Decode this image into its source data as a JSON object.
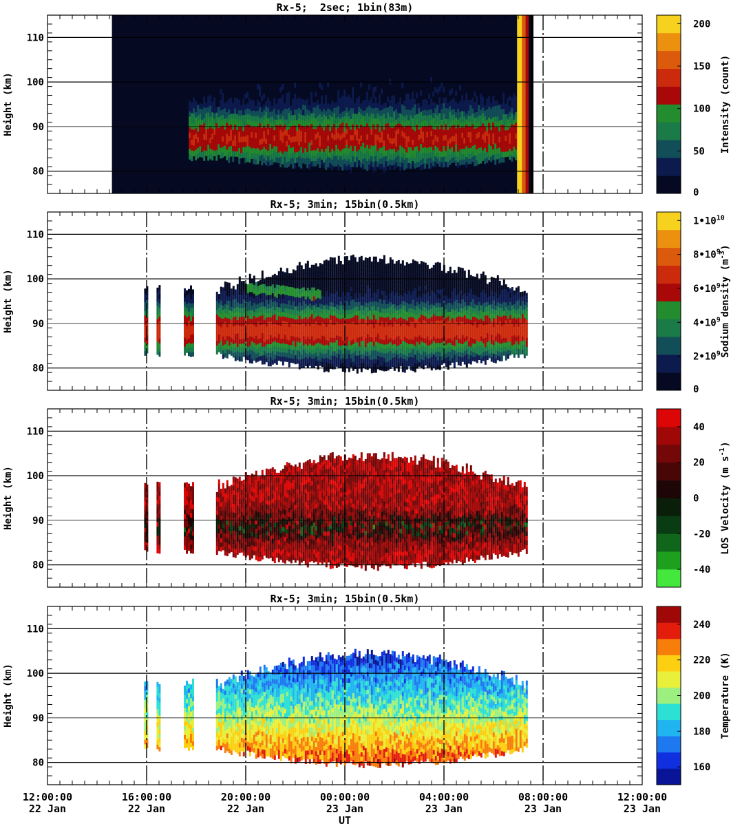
{
  "chart_data": {
    "type": "heatmap",
    "x_axis": {
      "label": "UT",
      "ticks": [
        {
          "time": "12:00:00",
          "day": "22 Jan"
        },
        {
          "time": "16:00:00",
          "day": "22 Jan"
        },
        {
          "time": "20:00:00",
          "day": "22 Jan"
        },
        {
          "time": "00:00:00",
          "day": "23 Jan"
        },
        {
          "time": "04:00:00",
          "day": "23 Jan"
        },
        {
          "time": "08:00:00",
          "day": "23 Jan"
        },
        {
          "time": "12:00:00",
          "day": "23 Jan"
        }
      ],
      "range_hours_ut": [
        12,
        36
      ]
    },
    "panels": [
      {
        "title": "Rx-5;  2sec; 1bin(83m)",
        "ylabel": "Height (km)",
        "yticks": [
          "110",
          "100",
          "90",
          "80"
        ],
        "ylim": [
          75,
          115
        ],
        "colorbar_label": "Intensity (count)",
        "colorbar_ticks": [
          "200",
          "150",
          "100",
          "50",
          "0"
        ],
        "colorbar_range": [
          0,
          210
        ],
        "colors": [
          "#050a22",
          "#0c1a4e",
          "#124e58",
          "#1a7a48",
          "#238c2e",
          "#a80808",
          "#cc2a0c",
          "#dc5a0c",
          "#ec9010",
          "#f6d21e"
        ],
        "data_window_hours": [
          14.6,
          31.5
        ],
        "dashed_time_hours": [
          32.0
        ],
        "layer": {
          "top_km": [
            98,
            100
          ],
          "bottom_km": [
            83,
            80.5
          ],
          "peak_km": 87
        }
      },
      {
        "title": "Rx-5; 3min; 15bin(0.5km)",
        "ylabel": "Height (km)",
        "yticks": [
          "110",
          "100",
          "90",
          "80"
        ],
        "ylim": [
          75,
          115
        ],
        "colorbar_label": "Sodium density (m^-3)",
        "colorbar_ticks": [
          "1•10^10",
          "8•10^9",
          "6•10^9",
          "4•10^9",
          "2•10^9",
          "0"
        ],
        "colorbar_range": [
          0,
          10500000000.0
        ],
        "colors": [
          "#050a22",
          "#0c1a4e",
          "#124e58",
          "#1a7a48",
          "#238c2e",
          "#a80808",
          "#cc2a0c",
          "#dc5a0c",
          "#ec9010",
          "#f6d21e"
        ],
        "data_segments_hours": [
          [
            15.9,
            16.05
          ],
          [
            16.4,
            16.5
          ],
          [
            17.5,
            17.85
          ],
          [
            18.8,
            31.35
          ]
        ],
        "dashed_time_hours": [
          16,
          20,
          24,
          28,
          32
        ],
        "layer": {
          "top_km": [
            97,
            104
          ],
          "bottom_km": [
            83,
            79.5
          ],
          "peak_km": 88
        }
      },
      {
        "title": "Rx-5; 3min; 15bin(0.5km)",
        "ylabel": "Height (km)",
        "yticks": [
          "110",
          "100",
          "90",
          "80"
        ],
        "ylim": [
          75,
          115
        ],
        "colorbar_label": "LOS Velocity (m s^-1)",
        "colorbar_ticks": [
          "40",
          "20",
          "0",
          "-20",
          "-40"
        ],
        "colorbar_range": [
          -50,
          50
        ],
        "colors": [
          "#44e83c",
          "#1ea01e",
          "#10661a",
          "#0a3c14",
          "#0a1e0a",
          "#1e0606",
          "#480606",
          "#740808",
          "#a00808",
          "#dc0606"
        ],
        "data_segments_hours": [
          [
            15.9,
            16.05
          ],
          [
            16.4,
            16.5
          ],
          [
            17.5,
            17.85
          ],
          [
            18.8,
            31.35
          ]
        ],
        "dashed_time_hours": [
          16,
          20,
          24,
          28,
          32
        ],
        "layer": {
          "top_km": [
            97,
            104
          ],
          "bottom_km": [
            83,
            79.5
          ],
          "peak_km": 88
        }
      },
      {
        "title": "Rx-5; 3min; 15bin(0.5km)",
        "ylabel": "Height (km)",
        "yticks": [
          "110",
          "100",
          "90",
          "80"
        ],
        "ylim": [
          75,
          115
        ],
        "colorbar_label": "Temperature (K)",
        "colorbar_ticks": [
          "240",
          "220",
          "200",
          "180",
          "160"
        ],
        "colorbar_range": [
          150,
          250
        ],
        "colors": [
          "#0a1496",
          "#1030e0",
          "#1e78f0",
          "#20b4f0",
          "#2ce0d4",
          "#9cf080",
          "#e8f03c",
          "#fcd010",
          "#f87e0c",
          "#e41c0c",
          "#a00808"
        ],
        "data_segments_hours": [
          [
            15.9,
            16.05
          ],
          [
            16.4,
            16.5
          ],
          [
            17.5,
            17.85
          ],
          [
            18.8,
            31.35
          ]
        ],
        "dashed_time_hours": [
          16,
          20,
          24,
          28,
          32
        ],
        "layer": {
          "top_km": [
            97,
            104
          ],
          "bottom_km": [
            83,
            79.5
          ],
          "peak_km": 88
        }
      }
    ]
  }
}
